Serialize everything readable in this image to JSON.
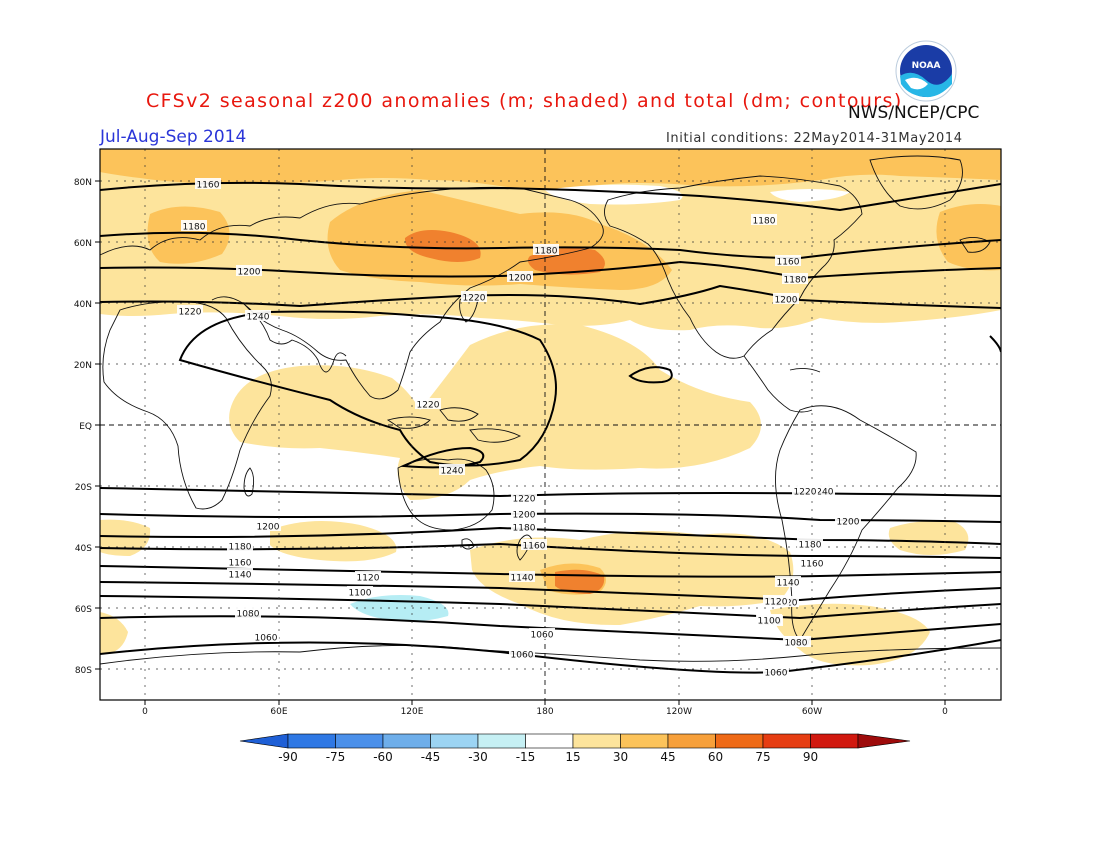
{
  "title": "CFSv2 seasonal z200 anomalies (m; shaded) and total (dm; contours)",
  "agency": "NWS/NCEP/CPC",
  "logo_text": "NOAA",
  "season": "Jul-Aug-Sep 2014",
  "initial_conditions": "Initial conditions: 22May2014-31May2014",
  "lat_labels": [
    "80N",
    "60N",
    "40N",
    "20N",
    "EQ",
    "20S",
    "40S",
    "60S",
    "80S"
  ],
  "lon_labels": [
    "0",
    "60E",
    "120E",
    "180",
    "120W",
    "60W",
    "0"
  ],
  "contour_labels": [
    "1160",
    "1180",
    "1200",
    "1220",
    "1240",
    "1180",
    "1200",
    "1220",
    "1180",
    "1160",
    "1180",
    "1200",
    "1220",
    "1240",
    "1240",
    "1220",
    "1200",
    "1180",
    "1160",
    "1140",
    "1120",
    "1100",
    "1080",
    "1060",
    "1060",
    "1200",
    "1180",
    "1160",
    "1140",
    "1120",
    "1100",
    "1080",
    "1060",
    "1220",
    "1200",
    "1180",
    "1160",
    "1140",
    "1120",
    "1100",
    "1080",
    "1060"
  ],
  "colorbar": {
    "ticks": [
      "-90",
      "-75",
      "-60",
      "-45",
      "-30",
      "-15",
      "15",
      "30",
      "45",
      "60",
      "75",
      "90"
    ],
    "colors": [
      "#1e5fd6",
      "#2f78e4",
      "#4b90ea",
      "#6eaeea",
      "#9cd4f3",
      "#c6f0f4",
      "#ffffff",
      "#fde49c",
      "#fcc35a",
      "#f7a03a",
      "#ef6a17",
      "#e63d12",
      "#d1180f",
      "#9e0b0b"
    ]
  },
  "shading_colors": {
    "light": "#fde49c",
    "mid": "#fcc35a",
    "strong": "#ef7a28",
    "neg": "#b6edf4"
  }
}
